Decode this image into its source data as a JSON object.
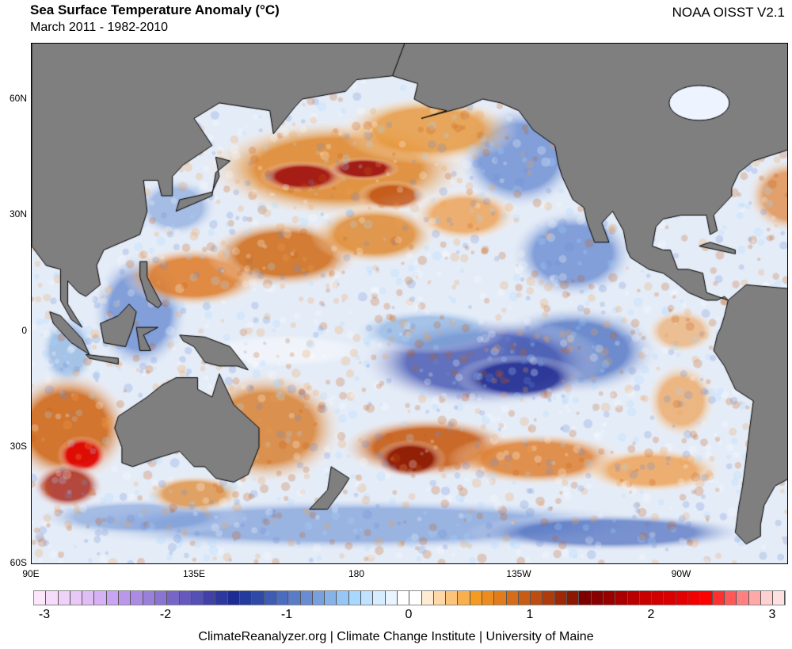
{
  "header": {
    "title": "Sea Surface Temperature Anomaly (°C)",
    "subtitle": "March 2011 - 1982-2010",
    "source": "NOAA OISST V2.1"
  },
  "axes": {
    "lat_labels": [
      "60N",
      "30N",
      "0",
      "30S",
      "60S"
    ],
    "lon_labels": [
      "90E",
      "135E",
      "180",
      "135W",
      "90W"
    ]
  },
  "colorbar": {
    "labels": [
      "-3",
      "-2",
      "-1",
      "0",
      "1",
      "2",
      "3"
    ],
    "colors": [
      "#fbe6fb",
      "#f5dcf8",
      "#efd2f7",
      "#e8c8f6",
      "#dfbef6",
      "#d6b1f6",
      "#caa4f4",
      "#bb97ea",
      "#ab8ce2",
      "#9a80d8",
      "#8a76d0",
      "#7766c6",
      "#6658bc",
      "#5450b4",
      "#4040a6",
      "#2d389e",
      "#1c2c94",
      "#243a9c",
      "#2f4aa6",
      "#3f5cb4",
      "#4c6cbe",
      "#5a7cc6",
      "#6a8cd2",
      "#78a0dc",
      "#86b2e8",
      "#96c6f6",
      "#a8d8ff",
      "#bee2ff",
      "#d6ecff",
      "#eaf4ff",
      "#ffffff",
      "#ffffff",
      "#ffebd2",
      "#ffd8a8",
      "#fcc47a",
      "#f8b04e",
      "#f49c22",
      "#ec8c1e",
      "#e07c1c",
      "#d46c18",
      "#c85c14",
      "#bc4c10",
      "#ac3c0c",
      "#9c2808",
      "#8c1804",
      "#7c0000",
      "#880000",
      "#980000",
      "#a80000",
      "#b80000",
      "#c80000",
      "#d00000",
      "#d80000",
      "#e40000",
      "#f00000",
      "#ff0000",
      "#ff3030",
      "#ff5858",
      "#ff8080",
      "#ffa8a8",
      "#ffd0d0",
      "#ffe0e0"
    ]
  },
  "footer": "ClimateReanalyzer.org | Climate Change Institute | University of Maine"
}
